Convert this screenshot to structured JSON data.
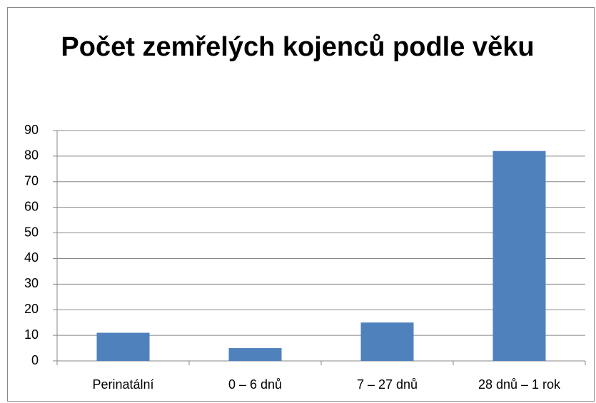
{
  "chart_data": {
    "type": "bar",
    "title": "Počet zemřelých kojenců podle věku",
    "categories": [
      "Perinatální",
      "0 – 6 dnů",
      "7 – 27 dnů",
      "28 dnů – 1 rok"
    ],
    "values": [
      11,
      5,
      15,
      82
    ],
    "color": "#4f81bd",
    "ylim": [
      0,
      90
    ],
    "yticks": [
      0,
      10,
      20,
      30,
      40,
      50,
      60,
      70,
      80,
      90
    ],
    "grid": true
  }
}
